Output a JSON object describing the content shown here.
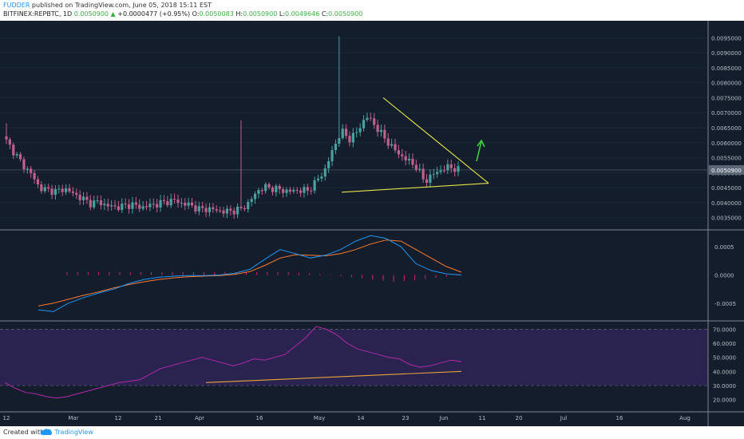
{
  "header": {
    "author": "FUDDER",
    "published_text": " published on TradingView.com, June 05, 2018 15:11 EST",
    "symbol": "BITFINEX:REPBTC, 1D",
    "last": "0.0050900",
    "change_icon": "triangle-up-icon",
    "change": "+0.0000477 (+0.95%)",
    "o_label": "O:",
    "o": "0.0050083",
    "h_label": "H:",
    "h": "0.0050900",
    "l_label": "L:",
    "l": "0.0049646",
    "c_label": "C:",
    "c": "0.0050900"
  },
  "footer": {
    "created": "Created with",
    "brand": "TradingView",
    "logo_icon": "tradingview-cloud-icon"
  },
  "colors": {
    "background": "#131d2b",
    "up": "#4aa0a0",
    "down": "#c2608c",
    "macd": "#2196f3",
    "signal": "#ff7a2f",
    "histogram": "#d8266a",
    "rsi": "#b02aa8",
    "rsi_band": "#2a2350",
    "triangle": "#e3e34a",
    "rsi_trend": "#e8a33a",
    "arrow": "#3ad23a",
    "last_price": "#131d2b"
  },
  "chart_data": [
    {
      "type": "candlestick",
      "title": "BITFINEX:REPBTC, 1D",
      "price_axis_ticks": [
        "0.0095000",
        "0.0090000",
        "0.0085000",
        "0.0080000",
        "0.0075000",
        "0.0070000",
        "0.0065000",
        "0.0060000",
        "0.0055000",
        "0.0050000",
        "0.0045000",
        "0.0040000",
        "0.0035000"
      ],
      "ylim": [
        0.0032,
        0.0098
      ],
      "last_price_label": "0.0050900",
      "time_axis_labels": [
        "12",
        "Mar",
        "12",
        "21",
        "Apr",
        "16",
        "May",
        "14",
        "23",
        "Jun",
        "11",
        "20",
        "Jul",
        "16",
        "Aug"
      ],
      "close_path": [
        0.00605,
        0.00565,
        0.00525,
        0.00495,
        0.00448,
        0.00442,
        0.00438,
        0.00447,
        0.0043,
        0.00415,
        0.00398,
        0.00403,
        0.0039,
        0.00386,
        0.00388,
        0.00395,
        0.00384,
        0.0039,
        0.00396,
        0.00402,
        0.00409,
        0.00397,
        0.00392,
        0.00378,
        0.0038,
        0.00376,
        0.0037,
        0.00373,
        0.00378,
        0.004,
        0.0044,
        0.00452,
        0.00447,
        0.00441,
        0.00438,
        0.00442,
        0.0044,
        0.0047,
        0.00505,
        0.00575,
        0.0064,
        0.00612,
        0.00638,
        0.0069,
        0.0066,
        0.00622,
        0.00588,
        0.0056,
        0.0054,
        0.0052,
        0.0047,
        0.00495,
        0.0051,
        0.0052,
        0.00509
      ],
      "annotations": [
        {
          "kind": "descending-trendline",
          "from_price": 0.0075,
          "to_price": 0.00465
        },
        {
          "kind": "support-trendline",
          "from_price": 0.00435,
          "to_price": 0.00465
        },
        {
          "kind": "arrow-up"
        }
      ]
    },
    {
      "type": "line",
      "name": "MACD",
      "axis_ticks": [
        "0.0005",
        "0.0000",
        "-0.0005"
      ],
      "ylim": [
        -0.0008,
        0.0008
      ],
      "series": [
        {
          "name": "macd",
          "values": [
            -0.00062,
            -0.00065,
            -0.0005,
            -0.0004,
            -0.00032,
            -0.00025,
            -0.00015,
            -8e-05,
            -4e-05,
            -2e-05,
            -1e-05,
            -1e-05,
            0.0,
            3e-05,
            0.0001,
            0.00028,
            0.00045,
            0.00038,
            0.0003,
            0.00035,
            0.00045,
            0.0006,
            0.0007,
            0.00065,
            0.0005,
            0.0002,
            8e-05,
            2e-05,
            0.0
          ]
        },
        {
          "name": "signal",
          "values": [
            -0.00055,
            -0.0005,
            -0.00043,
            -0.00036,
            -0.0003,
            -0.00023,
            -0.00017,
            -0.00012,
            -8e-05,
            -5e-05,
            -3e-05,
            -2e-05,
            -1e-05,
            1e-05,
            6e-05,
            0.00017,
            0.0003,
            0.00036,
            0.00035,
            0.00034,
            0.00038,
            0.00045,
            0.00055,
            0.00062,
            0.0006,
            0.00045,
            0.0003,
            0.00015,
            5e-05
          ]
        }
      ],
      "histogram": [
        5e-05,
        5e-05,
        5e-05,
        5e-05,
        5e-05,
        5e-05,
        5e-05,
        5e-05,
        5e-05,
        5e-05,
        5e-05,
        5e-05,
        5e-05,
        5e-05,
        5e-05,
        5e-05,
        5e-05,
        5e-05,
        5e-05,
        5e-05,
        5e-05,
        5e-05,
        4e-05,
        3e-05,
        2e-05,
        1e-05,
        -2e-05,
        -4e-05,
        -6e-05,
        -8e-05,
        -0.0001,
        -0.00012,
        -0.00011,
        -9e-05,
        -7e-05,
        -5e-05,
        -3e-05,
        -1e-05
      ]
    },
    {
      "type": "line",
      "name": "RSI",
      "axis_ticks": [
        "70.0000",
        "60.0000",
        "50.0000",
        "40.0000",
        "30.0000",
        "20.0000"
      ],
      "ylim": [
        14,
        76
      ],
      "band": [
        30,
        70
      ],
      "series": [
        {
          "name": "rsi",
          "values": [
            32,
            28,
            25,
            24,
            22,
            21,
            22,
            24,
            26,
            28,
            30,
            32,
            33,
            34,
            38,
            42,
            44,
            46,
            48,
            50,
            48,
            46,
            44,
            46,
            49,
            48,
            50,
            52,
            58,
            64,
            72,
            70,
            66,
            60,
            56,
            54,
            52,
            50,
            49,
            45,
            43,
            44,
            46,
            48,
            47
          ]
        }
      ],
      "trendline": [
        32,
        40
      ]
    }
  ]
}
